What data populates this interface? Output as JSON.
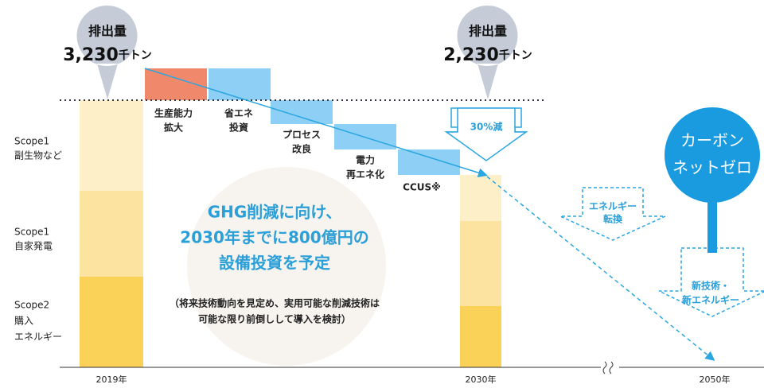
{
  "bubbles": [
    {
      "label": "排出量",
      "value": "3,230",
      "unit": "千トン"
    },
    {
      "label": "排出量",
      "value": "2,230",
      "unit": "千トン"
    }
  ],
  "scopes": [
    {
      "lines": [
        "Scope1",
        "副生物など"
      ]
    },
    {
      "lines": [
        "Scope1",
        "自家発電"
      ]
    },
    {
      "lines": [
        "Scope2",
        "購入",
        "エネルギー"
      ]
    }
  ],
  "steps": [
    {
      "lines": [
        "生産能力",
        "拡大"
      ]
    },
    {
      "lines": [
        "省エネ",
        "投資"
      ]
    },
    {
      "lines": [
        "プロセス",
        "改良"
      ]
    },
    {
      "lines": [
        "電力",
        "再エネ化"
      ]
    },
    {
      "lines": [
        "CCUS※"
      ]
    }
  ],
  "reduction": "30%減",
  "message": {
    "lines": [
      "GHG削減に向け、",
      "2030年までに800億円の",
      "設備投資を予定"
    ],
    "note": [
      "（将来技術動向を見定め、実用可能な削減技術は",
      "可能な限り前倒しして導入を検討）"
    ]
  },
  "energy_shift": [
    "エネルギー",
    "転換"
  ],
  "new_tech": [
    "新技術・",
    "新エネルギー"
  ],
  "goal": [
    "カーボン",
    "ネットゼロ"
  ],
  "years": [
    "2019年",
    "2030年",
    "2050年"
  ]
}
